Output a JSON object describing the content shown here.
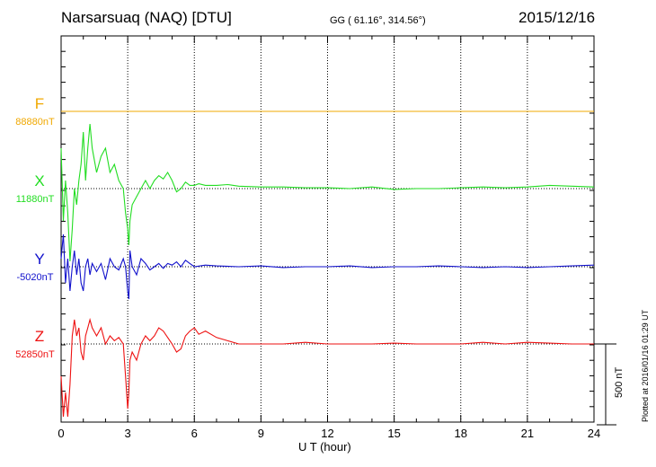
{
  "header": {
    "title": "Narsarsuaq (NAQ)  [DTU]",
    "coords": "GG ( 61.16°, 314.56°)",
    "date": "2015/12/16"
  },
  "side_note": "Plotted at 2016/01/16 01:29 UT",
  "chart_data": {
    "type": "line",
    "xlabel": "U T (hour)",
    "xlim": [
      0,
      24
    ],
    "xticks": [
      "0",
      "3",
      "6",
      "9",
      "12",
      "15",
      "18",
      "21",
      "24"
    ],
    "scale_bar": "500 nT",
    "series": [
      {
        "name": "F",
        "base_label": "88880nT",
        "color": "#f0a800",
        "x": [
          0,
          6,
          12,
          18,
          24
        ],
        "y": [
          0,
          0,
          0,
          0,
          0
        ]
      },
      {
        "name": "X",
        "base_label": "11880nT",
        "color": "#22dd22",
        "x": [
          0,
          0.1,
          0.2,
          0.3,
          0.4,
          0.5,
          0.6,
          0.7,
          0.8,
          0.9,
          1.0,
          1.1,
          1.2,
          1.3,
          1.4,
          1.6,
          1.8,
          2.0,
          2.2,
          2.4,
          2.6,
          2.8,
          2.9,
          3.0,
          3.05,
          3.1,
          3.2,
          3.4,
          3.6,
          3.8,
          4.0,
          4.2,
          4.4,
          4.6,
          4.8,
          5.0,
          5.2,
          5.4,
          5.6,
          5.8,
          6.0,
          6.2,
          6.5,
          7.0,
          7.5,
          8.0,
          9.0,
          10.0,
          11.0,
          12.0,
          13.0,
          14.0,
          15.0,
          16.0,
          17.0,
          18.0,
          19.0,
          20.0,
          21.0,
          22.0,
          23.0,
          24.0
        ],
        "y": [
          250,
          -200,
          50,
          -150,
          -450,
          -250,
          0,
          -100,
          50,
          150,
          350,
          50,
          250,
          400,
          250,
          100,
          200,
          250,
          100,
          150,
          50,
          0,
          -150,
          -250,
          -350,
          -200,
          -100,
          -50,
          0,
          50,
          0,
          50,
          80,
          60,
          100,
          50,
          -20,
          0,
          40,
          20,
          20,
          30,
          20,
          20,
          25,
          15,
          10,
          10,
          5,
          5,
          0,
          10,
          -5,
          0,
          0,
          5,
          10,
          5,
          10,
          20,
          15,
          10
        ]
      },
      {
        "name": "Y",
        "base_label": "-5020nT",
        "color": "#1111cc",
        "x": [
          0,
          0.1,
          0.2,
          0.3,
          0.4,
          0.5,
          0.6,
          0.7,
          0.8,
          0.9,
          1.0,
          1.1,
          1.2,
          1.3,
          1.4,
          1.6,
          1.8,
          2.0,
          2.2,
          2.4,
          2.6,
          2.8,
          2.9,
          3.0,
          3.05,
          3.1,
          3.2,
          3.4,
          3.6,
          3.8,
          4.0,
          4.2,
          4.4,
          4.6,
          4.8,
          5.0,
          5.2,
          5.4,
          5.6,
          5.8,
          6.0,
          6.5,
          7.0,
          8.0,
          9.0,
          10.0,
          11.0,
          12.0,
          13.0,
          14.0,
          15.0,
          16.0,
          17.0,
          18.0,
          19.0,
          20.0,
          21.0,
          22.0,
          23.0,
          24.0
        ],
        "y": [
          50,
          200,
          -100,
          50,
          -150,
          0,
          100,
          -50,
          50,
          -100,
          -150,
          0,
          50,
          -50,
          20,
          -30,
          20,
          -80,
          50,
          0,
          -20,
          50,
          0,
          -150,
          -200,
          100,
          0,
          -50,
          50,
          20,
          -20,
          0,
          20,
          -10,
          20,
          10,
          30,
          0,
          40,
          20,
          0,
          10,
          5,
          0,
          5,
          -5,
          0,
          0,
          5,
          -5,
          0,
          0,
          5,
          0,
          -5,
          0,
          -5,
          0,
          5,
          10
        ]
      },
      {
        "name": "Z",
        "base_label": "52850nT",
        "color": "#ee1111",
        "x": [
          0,
          0.1,
          0.2,
          0.3,
          0.4,
          0.5,
          0.6,
          0.7,
          0.8,
          0.9,
          1.0,
          1.1,
          1.2,
          1.3,
          1.4,
          1.6,
          1.8,
          2.0,
          2.2,
          2.4,
          2.6,
          2.8,
          2.9,
          3.0,
          3.05,
          3.1,
          3.2,
          3.4,
          3.6,
          3.8,
          4.0,
          4.2,
          4.4,
          4.6,
          4.8,
          5.0,
          5.2,
          5.4,
          5.6,
          5.8,
          6.0,
          6.2,
          6.5,
          7.0,
          7.5,
          8.0,
          9.0,
          10.0,
          11.0,
          12.0,
          13.0,
          14.0,
          15.0,
          16.0,
          17.0,
          18.0,
          19.0,
          20.0,
          21.0,
          22.0,
          23.0,
          24.0
        ],
        "y": [
          -200,
          -450,
          -300,
          -450,
          -250,
          50,
          150,
          50,
          100,
          -50,
          -100,
          50,
          100,
          150,
          100,
          50,
          100,
          0,
          50,
          20,
          40,
          0,
          -200,
          -400,
          -300,
          -100,
          -50,
          -100,
          0,
          50,
          20,
          50,
          100,
          80,
          40,
          0,
          -50,
          -30,
          50,
          80,
          100,
          60,
          80,
          40,
          20,
          0,
          0,
          0,
          10,
          0,
          0,
          0,
          5,
          0,
          0,
          0,
          10,
          0,
          10,
          5,
          0,
          0
        ]
      }
    ]
  }
}
